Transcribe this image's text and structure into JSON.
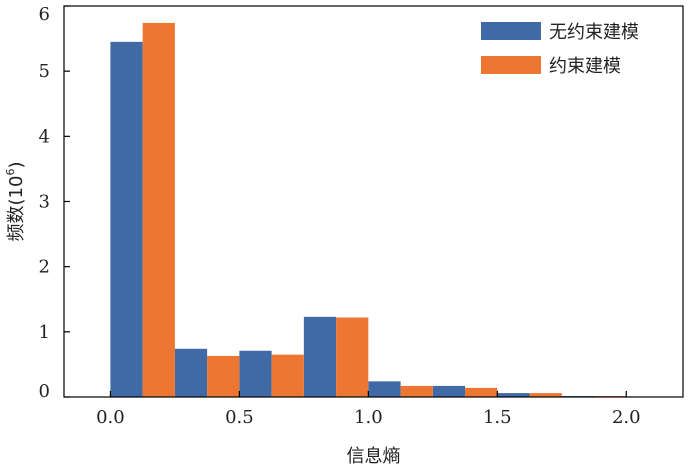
{
  "chart_data": {
    "type": "bar",
    "xlabel": "信息熵",
    "ylabel_text": "频数(10",
    "ylabel_exp": "6",
    "ylabel_close": ")",
    "xlim": [
      -0.18,
      2.22
    ],
    "ylim": [
      0,
      6
    ],
    "xticks": [
      0.0,
      0.5,
      1.0,
      1.5,
      2.0
    ],
    "xtick_labels": [
      "0.0",
      "0.5",
      "1.0",
      "1.5",
      "2.0"
    ],
    "yticks": [
      0,
      1,
      2,
      3,
      4,
      5,
      6
    ],
    "ytick_labels": [
      "0",
      "1",
      "2",
      "3",
      "4",
      "5",
      "6"
    ],
    "bin_width": 0.25,
    "x": [
      0.125,
      0.375,
      0.625,
      0.875,
      1.125,
      1.375,
      1.625,
      1.875
    ],
    "series": [
      {
        "name": "无约束建模",
        "color": "#3f6aa6",
        "values": [
          5.45,
          0.74,
          0.71,
          1.23,
          0.24,
          0.17,
          0.06,
          0.015
        ]
      },
      {
        "name": "约束建模",
        "color": "#ee7633",
        "values": [
          5.74,
          0.63,
          0.65,
          1.22,
          0.17,
          0.14,
          0.06,
          0.015
        ]
      }
    ],
    "legend_position": "top-right",
    "grid": false
  }
}
